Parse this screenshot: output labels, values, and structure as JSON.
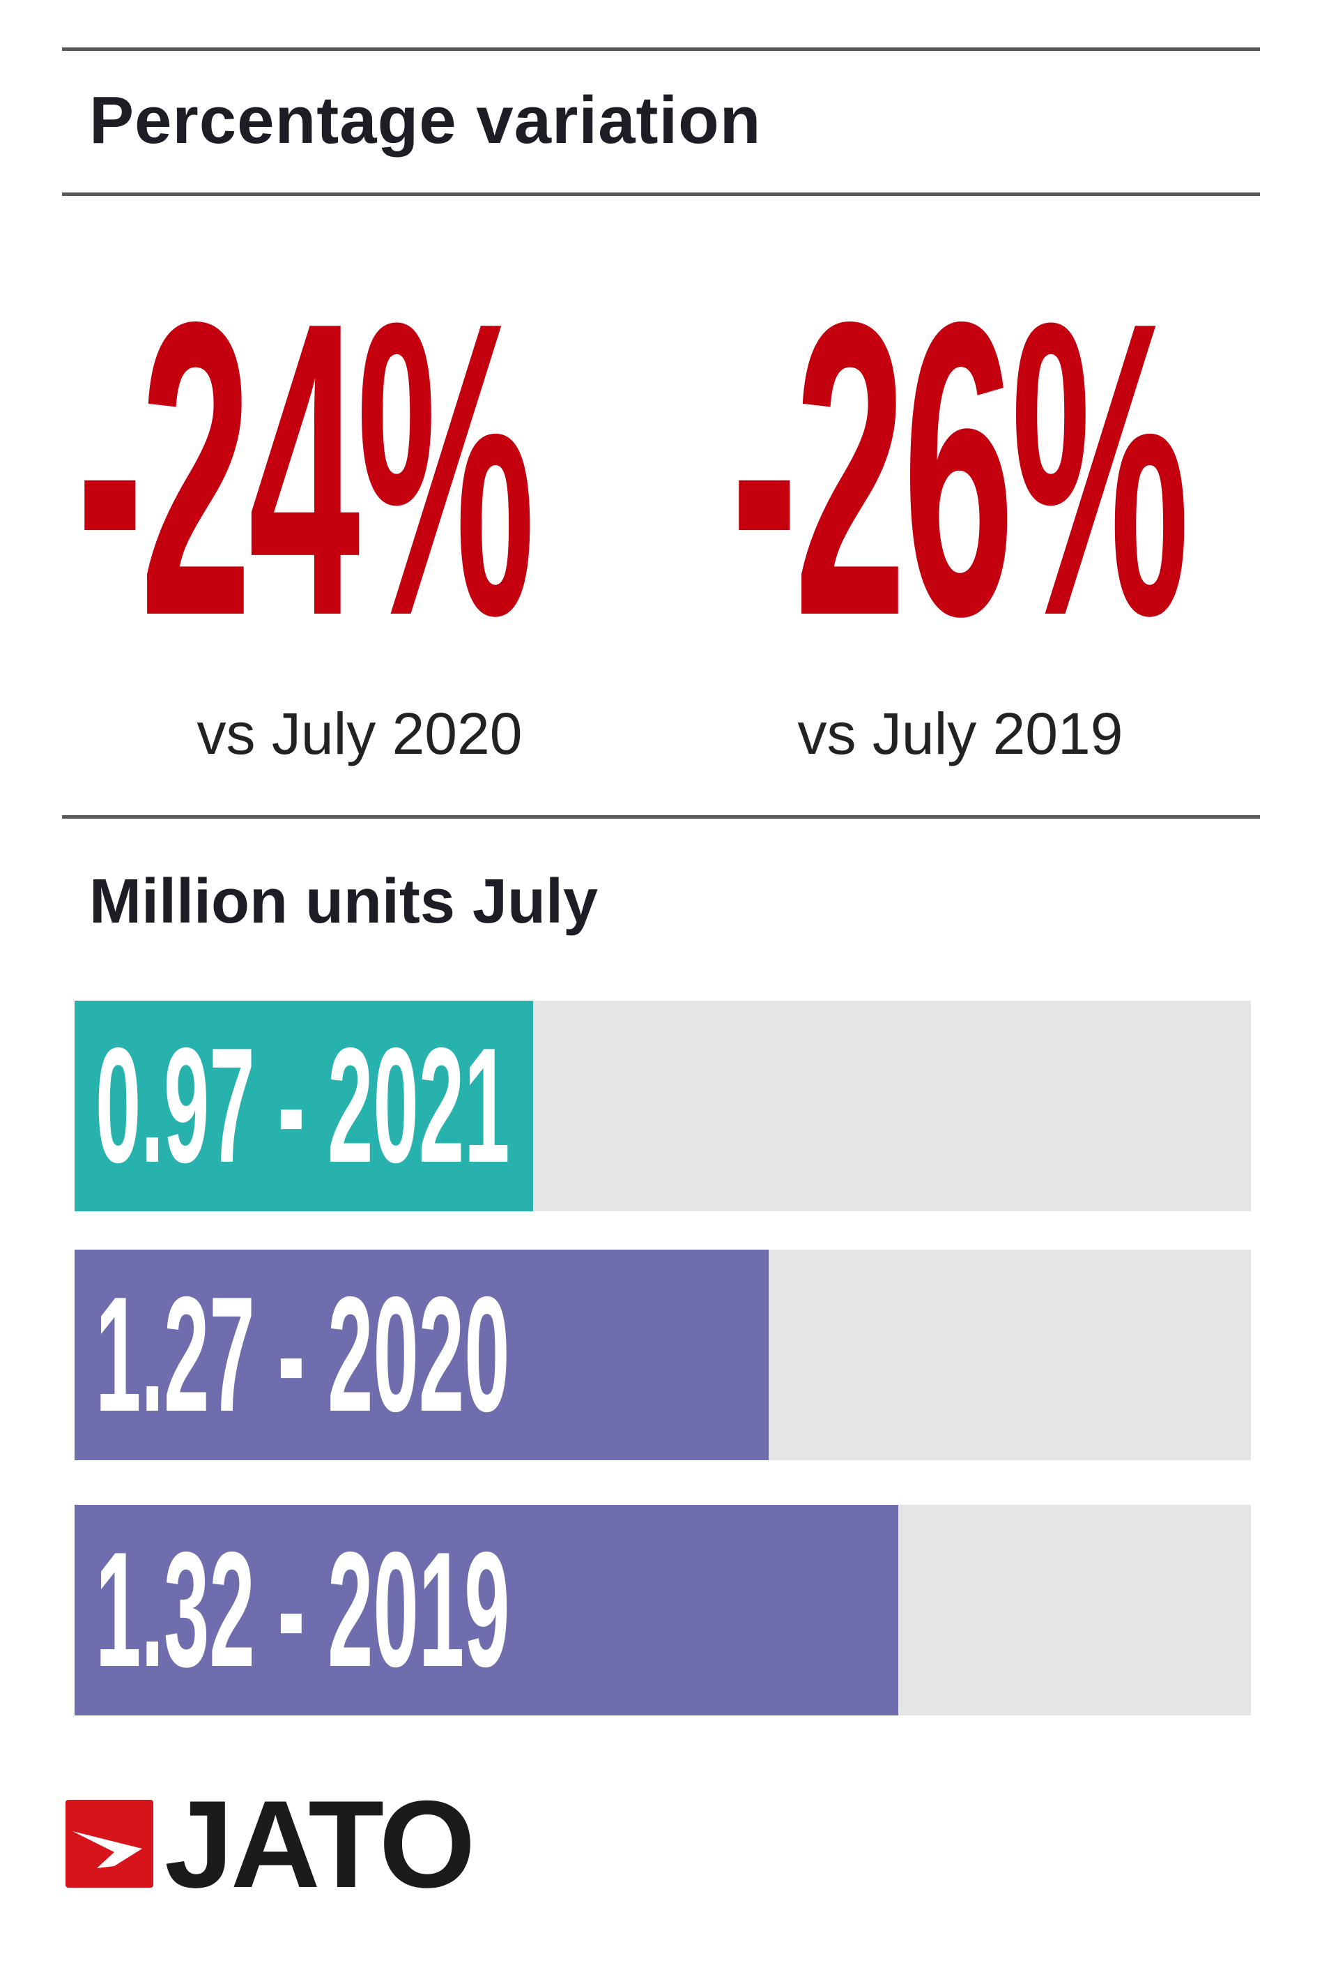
{
  "title": "Percentage variation",
  "variations": [
    {
      "value": "-24%",
      "label": "vs July 2020"
    },
    {
      "value": "-26%",
      "label": "vs July 2019"
    }
  ],
  "colors": {
    "accent_red": "#c4000f",
    "teal": "#27b2ad",
    "purple": "#6f6dad",
    "track": "#e6e5e6"
  },
  "chart_data": {
    "type": "bar",
    "orientation": "horizontal",
    "title": "Million units July",
    "categories": [
      "2021",
      "2020",
      "2019"
    ],
    "values": [
      0.97,
      1.27,
      1.32
    ],
    "bar_labels": [
      "0.97 - 2021",
      "1.27 - 2020",
      "1.32 - 2019"
    ],
    "fill_fraction": [
      0.39,
      0.59,
      0.7
    ],
    "bar_colors": [
      "#27b2ad",
      "#6f6dad",
      "#6f6dad"
    ]
  },
  "logo": {
    "text": "JATO"
  }
}
